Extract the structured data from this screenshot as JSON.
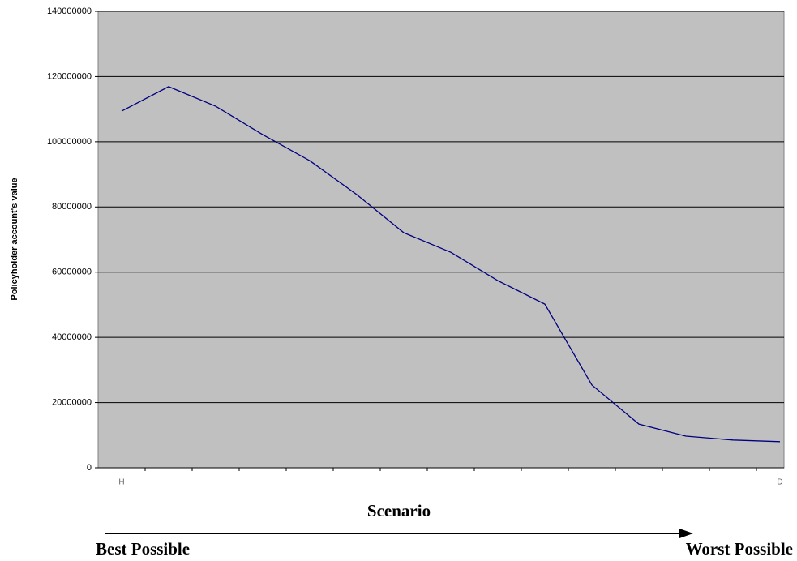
{
  "chart_data": {
    "type": "line",
    "y_label": "Policyholder account's value",
    "x_label": "Scenario",
    "annotations": {
      "left": "Best Possible",
      "right": "Worst Possible"
    },
    "categories": [
      "H",
      null,
      null,
      null,
      null,
      null,
      null,
      null,
      null,
      null,
      null,
      null,
      null,
      null,
      "D"
    ],
    "series": [
      {
        "color": "#000080",
        "values": [
          109400000,
          116900000,
          110900000,
          102200000,
          94200000,
          83800000,
          72100000,
          66100000,
          57400000,
          50200000,
          25400000,
          13400000,
          9700000,
          8500000,
          8000000
        ]
      }
    ],
    "ylim": [
      0,
      140000000
    ],
    "yticks": [
      0,
      20000000,
      40000000,
      60000000,
      80000000,
      100000000,
      120000000,
      140000000
    ],
    "grid": true,
    "background": "#c0c0c0"
  }
}
